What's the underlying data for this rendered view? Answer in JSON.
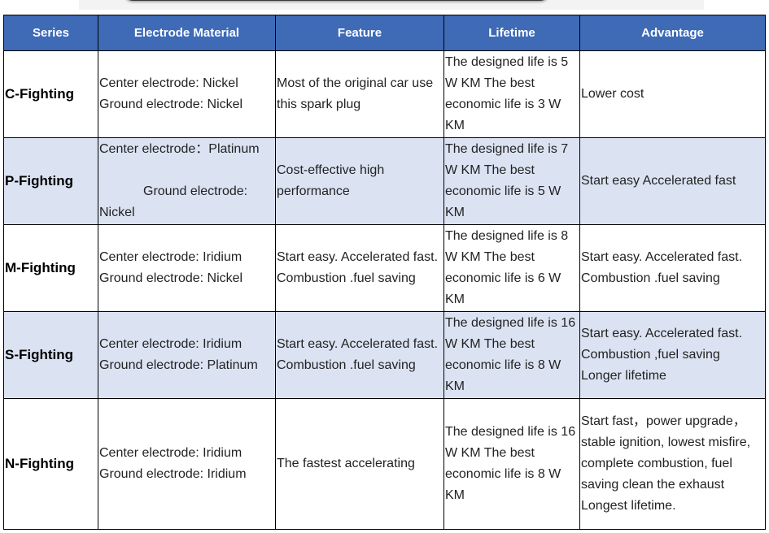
{
  "headers": [
    "Series",
    "Electrode Material",
    "Feature",
    "Lifetime",
    "Advantage"
  ],
  "rows": [
    {
      "series": "C-Fighting",
      "material": [
        "Center electrode: Nickel",
        "Ground electrode: Nickel"
      ],
      "feature": "Most of the original car use this spark plug",
      "lifetime": "The designed life is 5 W KM The best economic life is 3 W KM",
      "advantage": "Lower cost"
    },
    {
      "series": "P-Fighting",
      "material": [
        "Center electrode：Platinum",
        "Ground electrode: Nickel"
      ],
      "feature": "Cost-effective high performance",
      "lifetime": "The designed life is 7 W KM The best economic life is 5 W KM",
      "advantage": "Start easy Accelerated fast"
    },
    {
      "series": "M-Fighting",
      "material": [
        "Center electrode: Iridium",
        "Ground electrode: Nickel"
      ],
      "feature": "Start easy. Accelerated fast. Combustion .fuel saving",
      "lifetime": "The designed life is 8 W KM The best economic life is 6 W KM",
      "advantage": "Start easy. Accelerated fast. Combustion .fuel saving"
    },
    {
      "series": "S-Fighting",
      "material": [
        "Center electrode: Iridium",
        "Ground electrode: Platinum"
      ],
      "feature": "Start easy. Accelerated fast. Combustion .fuel saving",
      "lifetime": "The designed life is 16 W KM The best economic life is 8 W KM",
      "advantage": "Start easy. Accelerated fast. Combustion ,fuel saving Longer lifetime"
    },
    {
      "series": "N-Fighting",
      "material": [
        "Center electrode: Iridium",
        "Ground electrode: Iridium"
      ],
      "feature": "The fastest accelerating",
      "lifetime": "The designed life is 16 W KM The best economic life is 8 W KM",
      "advantage": "Start fast，power upgrade，stable ignition, lowest misfire, complete combustion, fuel saving clean the exhaust Longest lifetime."
    }
  ],
  "colors": {
    "header_bg": "#3e6ab6",
    "alt_row_bg": "#dbe3f3"
  }
}
